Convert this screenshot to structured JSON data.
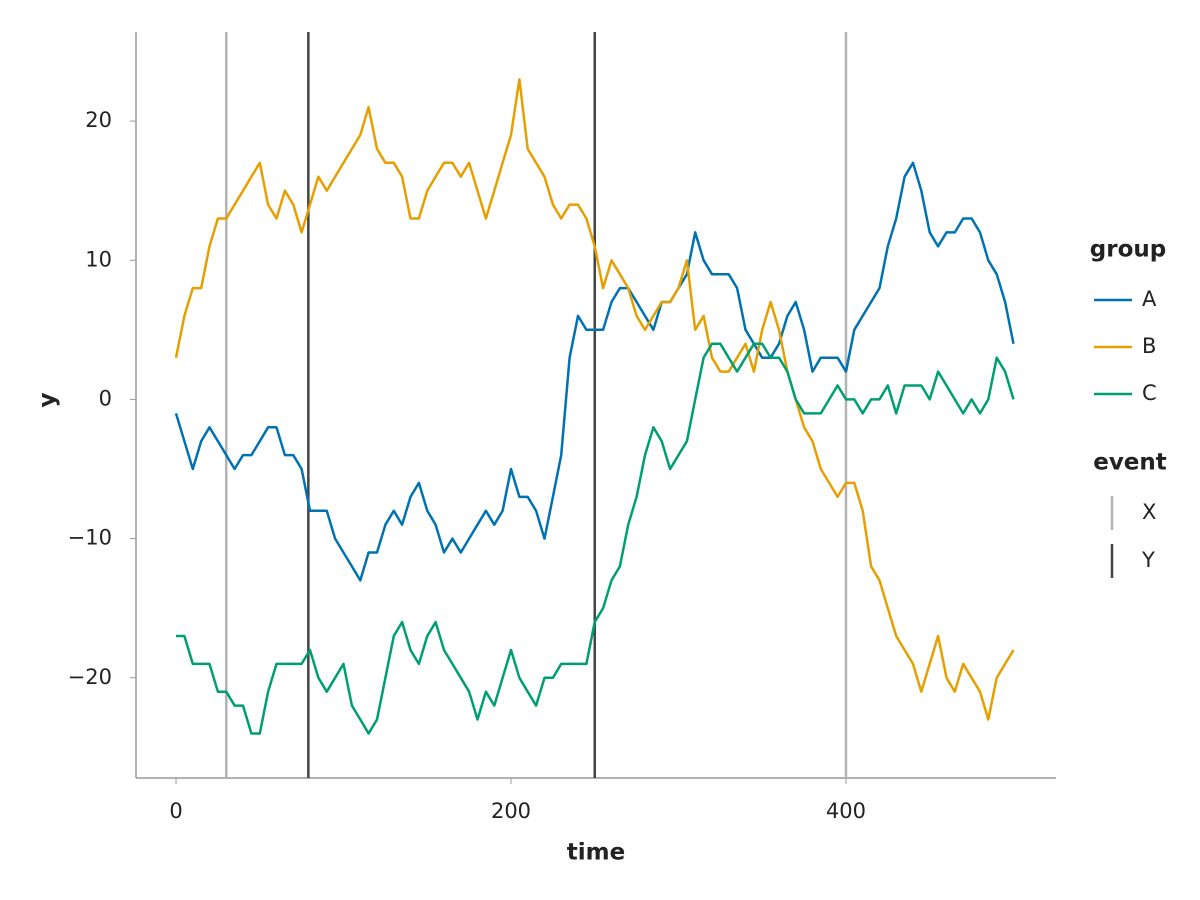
{
  "chart_data": {
    "type": "line",
    "xlabel": "time",
    "ylabel": "y",
    "legend_title": "group",
    "event_title": "event",
    "xlim": [
      -23.9,
      525.4
    ],
    "ylim": [
      -27.2,
      26.4
    ],
    "xticks": [
      0,
      200,
      400
    ],
    "yticks": [
      {
        "value": -20,
        "label": "−20"
      },
      {
        "value": -10,
        "label": "−10"
      },
      0,
      10,
      20
    ],
    "grid": false,
    "x": [
      0,
      5,
      10,
      15,
      20,
      25,
      30,
      35,
      40,
      45,
      50,
      55,
      60,
      65,
      70,
      75,
      80,
      85,
      90,
      95,
      100,
      105,
      110,
      115,
      120,
      125,
      130,
      135,
      140,
      145,
      150,
      155,
      160,
      165,
      170,
      175,
      180,
      185,
      190,
      195,
      200,
      205,
      210,
      215,
      220,
      225,
      230,
      235,
      240,
      245,
      250,
      255,
      260,
      265,
      270,
      275,
      280,
      285,
      290,
      295,
      300,
      305,
      310,
      315,
      320,
      325,
      330,
      335,
      340,
      345,
      350,
      355,
      360,
      365,
      370,
      375,
      380,
      385,
      390,
      395,
      400,
      405,
      410,
      415,
      420,
      425,
      430,
      435,
      440,
      445,
      450,
      455,
      460,
      465,
      470,
      475,
      480,
      485,
      490,
      495,
      500
    ],
    "series": [
      {
        "name": "A",
        "color": "#0072b2",
        "values": [
          -1,
          -3,
          -5,
          -3,
          -2,
          -3,
          -4,
          -5,
          -4,
          -4,
          -3,
          -2,
          -2,
          -4,
          -4,
          -5,
          -8,
          -8,
          -8,
          -10,
          -11,
          -12,
          -13,
          -11,
          -11,
          -9,
          -8,
          -9,
          -7,
          -6,
          -8,
          -9,
          -11,
          -10,
          -11,
          -10,
          -9,
          -8,
          -9,
          -8,
          -5,
          -7,
          -7,
          -8,
          -10,
          -7,
          -4,
          3,
          6,
          5,
          5,
          5,
          7,
          8,
          8,
          7,
          6,
          5,
          7,
          7,
          8,
          9,
          12,
          10,
          9,
          9,
          9,
          8,
          5,
          4,
          3,
          3,
          4,
          6,
          7,
          5,
          2,
          3,
          3,
          3,
          2,
          5,
          6,
          7,
          8,
          11,
          13,
          16,
          17,
          15,
          12,
          11,
          12,
          12,
          13,
          13,
          12,
          10,
          9,
          7,
          4
        ]
      },
      {
        "name": "B",
        "color": "#e69f00",
        "values": [
          3,
          6,
          8,
          8,
          11,
          13,
          13,
          14,
          15,
          16,
          17,
          14,
          13,
          15,
          14,
          12,
          14,
          16,
          15,
          16,
          17,
          18,
          19,
          21,
          18,
          17,
          17,
          16,
          13,
          13,
          15,
          16,
          17,
          17,
          16,
          17,
          15,
          13,
          15,
          17,
          19,
          23,
          18,
          17,
          16,
          14,
          13,
          14,
          14,
          13,
          11,
          8,
          10,
          9,
          8,
          6,
          5,
          6,
          7,
          7,
          8,
          10,
          5,
          6,
          3,
          2,
          2,
          3,
          4,
          2,
          5,
          7,
          5,
          2,
          0,
          -2,
          -3,
          -5,
          -6,
          -7,
          -6,
          -6,
          -8,
          -12,
          -13,
          -15,
          -17,
          -18,
          -19,
          -21,
          -19,
          -17,
          -20,
          -21,
          -19,
          -20,
          -21,
          -23,
          -20,
          -19,
          -18
        ]
      },
      {
        "name": "C",
        "color": "#009e73",
        "values": [
          -17,
          -17,
          -19,
          -19,
          -19,
          -21,
          -21,
          -22,
          -22,
          -24,
          -24,
          -21,
          -19,
          -19,
          -19,
          -19,
          -18,
          -20,
          -21,
          -20,
          -19,
          -22,
          -23,
          -24,
          -23,
          -20,
          -17,
          -16,
          -18,
          -19,
          -17,
          -16,
          -18,
          -19,
          -20,
          -21,
          -23,
          -21,
          -22,
          -20,
          -18,
          -20,
          -21,
          -22,
          -20,
          -20,
          -19,
          -19,
          -19,
          -19,
          -16,
          -15,
          -13,
          -12,
          -9,
          -7,
          -4,
          -2,
          -3,
          -5,
          -4,
          -3,
          0,
          3,
          4,
          4,
          3,
          2,
          3,
          4,
          4,
          3,
          3,
          2,
          0,
          -1,
          -1,
          -1,
          0,
          1,
          0,
          0,
          -1,
          0,
          0,
          1,
          -1,
          1,
          1,
          1,
          0,
          2,
          1,
          0,
          -1,
          0,
          -1,
          0,
          3,
          2,
          0
        ]
      }
    ],
    "events": [
      {
        "name": "X",
        "color": "#b3b3b3",
        "x": [
          30,
          400
        ]
      },
      {
        "name": "Y",
        "color": "#444444",
        "x": [
          79,
          250
        ]
      }
    ]
  }
}
